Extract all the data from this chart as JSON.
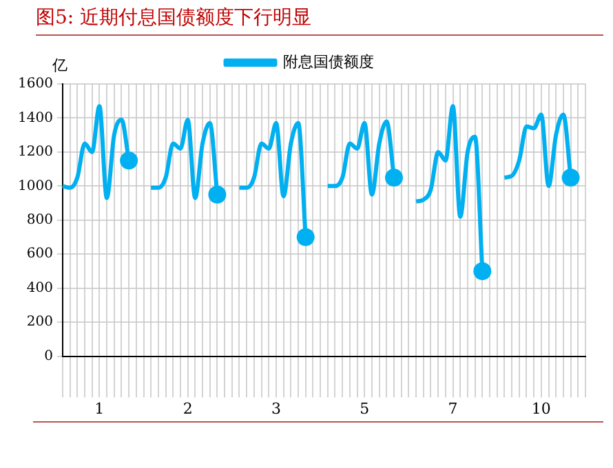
{
  "chart_data": {
    "type": "line",
    "title": "图5:  近期付息国债额度下行明显",
    "ylabel": "亿",
    "categories": [
      null,
      null,
      null,
      null,
      null,
      "1",
      null,
      null,
      null,
      null,
      null,
      null,
      null,
      null,
      null,
      null,
      null,
      "2",
      null,
      null,
      null,
      null,
      null,
      null,
      null,
      null,
      null,
      null,
      null,
      "3",
      null,
      null,
      null,
      null,
      null,
      null,
      null,
      null,
      null,
      null,
      null,
      "5",
      null,
      null,
      null,
      null,
      null,
      null,
      null,
      null,
      null,
      null,
      null,
      "7",
      null,
      null,
      null,
      null,
      null,
      null,
      null,
      null,
      null,
      null,
      null,
      "10",
      null,
      null,
      null,
      null,
      null,
      null
    ],
    "series": [
      {
        "name": "附息国债额度",
        "color": "#00b0f0",
        "values": [
          1000,
          990,
          1050,
          1250,
          1200,
          1470,
          930,
          1300,
          1390,
          1150,
          null,
          null,
          990,
          990,
          1050,
          1250,
          1220,
          1390,
          930,
          1250,
          1370,
          950,
          null,
          null,
          990,
          990,
          1050,
          1250,
          1220,
          1370,
          940,
          1250,
          1370,
          700,
          null,
          null,
          1000,
          1000,
          1050,
          1250,
          1220,
          1370,
          950,
          1250,
          1380,
          1050,
          null,
          null,
          910,
          920,
          980,
          1200,
          1150,
          1470,
          820,
          1200,
          1290,
          500,
          null,
          null,
          1050,
          1060,
          1150,
          1350,
          1340,
          1420,
          1000,
          1300,
          1420,
          1050,
          null,
          null
        ]
      }
    ],
    "ylim": [
      0,
      1600
    ],
    "yticks": [
      0,
      200,
      400,
      600,
      800,
      1000,
      1200,
      1400,
      1600
    ],
    "grid": true,
    "legend": "top"
  }
}
